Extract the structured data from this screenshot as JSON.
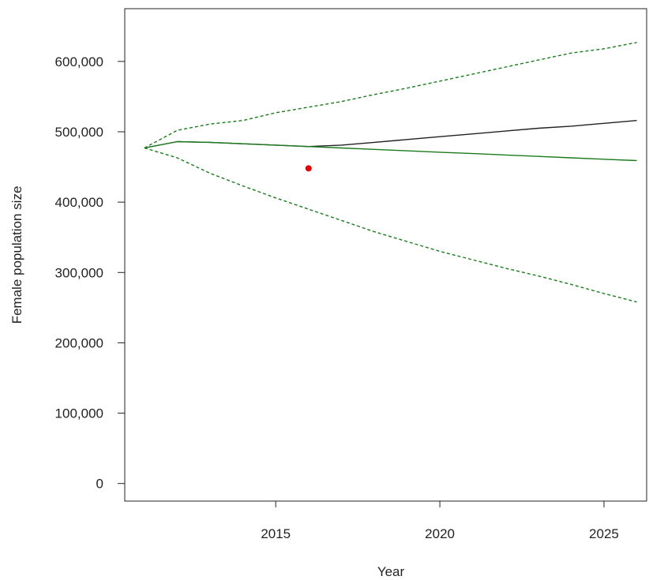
{
  "chart_data": {
    "type": "line",
    "xlabel": "Year",
    "ylabel": "Female population size",
    "xlim": [
      2010.4,
      2026.3
    ],
    "ylim": [
      -25000,
      675000
    ],
    "x_ticks": [
      2015,
      2020,
      2025
    ],
    "x_tick_labels": [
      "2015",
      "2020",
      "2025"
    ],
    "y_ticks": [
      0,
      100000,
      200000,
      300000,
      400000,
      500000,
      600000
    ],
    "y_tick_labels": [
      "0",
      "100,000",
      "200,000",
      "300,000",
      "400,000",
      "500,000",
      "600,000"
    ],
    "grid": false,
    "legend": "none",
    "series": [
      {
        "color": "#222222",
        "dash": "solid",
        "x": [
          2011,
          2012,
          2013,
          2014,
          2015,
          2016,
          2017,
          2018,
          2019,
          2020,
          2021,
          2022,
          2023,
          2024,
          2025,
          2026
        ],
        "y": [
          477000,
          486000,
          485000,
          483000,
          481000,
          479000,
          481000,
          485000,
          489000,
          493000,
          497000,
          501000,
          505000,
          508000,
          512000,
          516000
        ]
      },
      {
        "color": "#1b7a1b",
        "dash": "solid",
        "x": [
          2011,
          2012,
          2013,
          2014,
          2015,
          2016,
          2017,
          2018,
          2019,
          2020,
          2021,
          2022,
          2023,
          2024,
          2025,
          2026
        ],
        "y": [
          477000,
          486000,
          485000,
          483000,
          481000,
          479000,
          477000,
          475000,
          473000,
          471000,
          469000,
          467000,
          465000,
          463000,
          461000,
          459000
        ]
      },
      {
        "color": "#1b7a1b",
        "dash": "dashed",
        "x": [
          2011,
          2012,
          2013,
          2014,
          2015,
          2016,
          2017,
          2018,
          2019,
          2020,
          2021,
          2022,
          2023,
          2024,
          2025,
          2026
        ],
        "y": [
          477000,
          502000,
          511000,
          516000,
          527000,
          535000,
          543000,
          553000,
          562000,
          572000,
          582000,
          592000,
          602000,
          612000,
          618000,
          627000
        ]
      },
      {
        "color": "#1b7a1b",
        "dash": "dashed",
        "x": [
          2011,
          2012,
          2013,
          2014,
          2015,
          2016,
          2017,
          2018,
          2019,
          2020,
          2021,
          2022,
          2023,
          2024,
          2025,
          2026
        ],
        "y": [
          477000,
          463000,
          441000,
          423000,
          406000,
          390000,
          374000,
          358000,
          344000,
          330000,
          318000,
          306000,
          295000,
          283000,
          270000,
          258000
        ]
      }
    ],
    "points": [
      {
        "x": 2016,
        "y": 448000,
        "color": "#e60000"
      }
    ]
  }
}
